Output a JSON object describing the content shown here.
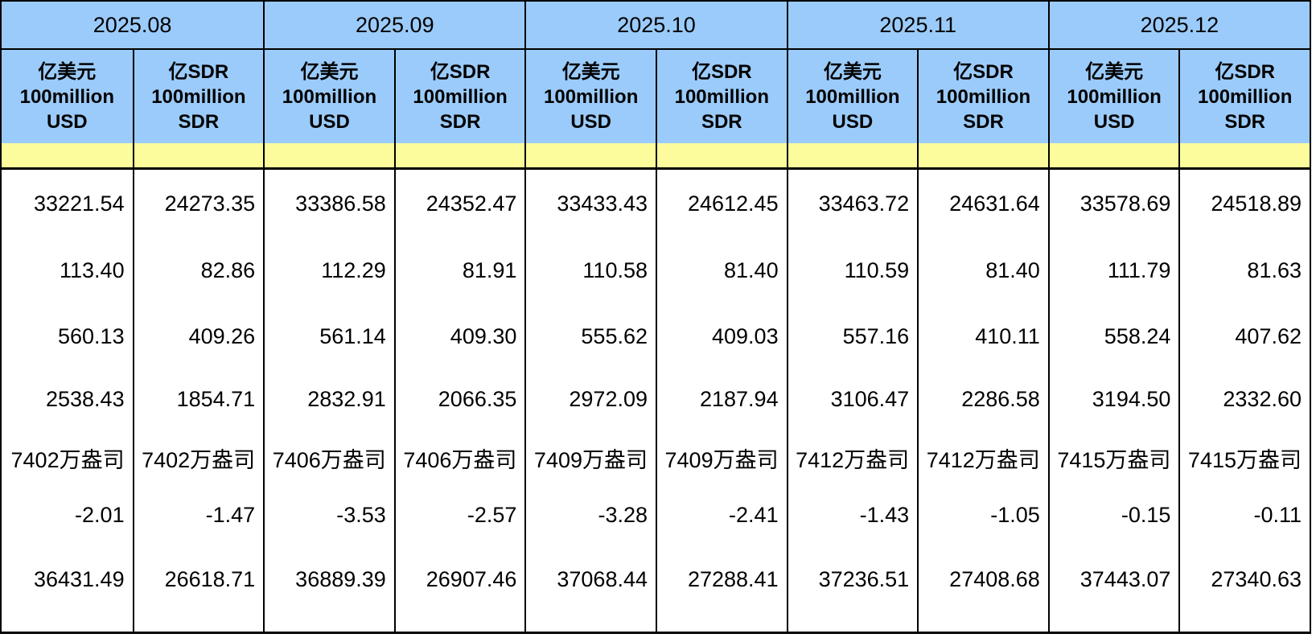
{
  "chart_data": {
    "type": "table",
    "months": [
      "2025.08",
      "2025.09",
      "2025.10",
      "2025.11",
      "2025.12"
    ],
    "unit_headers": {
      "usd": "亿美元\n100million\nUSD",
      "sdr": "亿SDR\n100million\nSDR"
    },
    "band_row": [
      "",
      "",
      "",
      "",
      "",
      "",
      "",
      "",
      "",
      ""
    ],
    "rows": [
      {
        "values": [
          "33221.54",
          "24273.35",
          "33386.58",
          "24352.47",
          "33433.43",
          "24612.45",
          "33463.72",
          "24631.64",
          "33578.69",
          "24518.89"
        ]
      },
      {
        "values": [
          "113.40",
          "82.86",
          "112.29",
          "81.91",
          "110.58",
          "81.40",
          "110.59",
          "81.40",
          "111.79",
          "81.63"
        ]
      },
      {
        "values": [
          "560.13",
          "409.26",
          "561.14",
          "409.30",
          "555.62",
          "409.03",
          "557.16",
          "410.11",
          "558.24",
          "407.62"
        ]
      },
      {
        "values": [
          "2538.43",
          "1854.71",
          "2832.91",
          "2066.35",
          "2972.09",
          "2187.94",
          "3106.47",
          "2286.58",
          "3194.50",
          "2332.60"
        ]
      },
      {
        "values": [
          "7402万盎司",
          "7402万盎司",
          "7406万盎司",
          "7406万盎司",
          "7409万盎司",
          "7409万盎司",
          "7412万盎司",
          "7412万盎司",
          "7415万盎司",
          "7415万盎司"
        ]
      },
      {
        "values": [
          "-2.01",
          "-1.47",
          "-3.53",
          "-2.57",
          "-3.28",
          "-2.41",
          "-1.43",
          "-1.05",
          "-0.15",
          "-0.11"
        ]
      },
      {
        "values": [
          "36431.49",
          "26618.71",
          "36889.39",
          "26907.46",
          "37068.44",
          "27288.41",
          "37236.51",
          "27408.68",
          "37443.07",
          "27340.63"
        ]
      }
    ]
  },
  "colors": {
    "header_blue": "#9BCBFA",
    "band_yellow": "#FCFC9D",
    "border": "#000000",
    "text": "#000000",
    "background": "#FFFFFF"
  }
}
